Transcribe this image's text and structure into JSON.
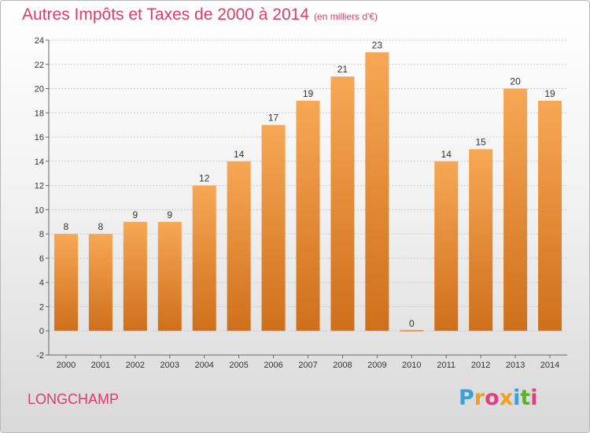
{
  "title": "Autres Impôts et Taxes de 2000 à 2014",
  "title_unit": "(en milliers d'€)",
  "location": "LONGCHAMP",
  "logo": {
    "letters": [
      "P",
      "r",
      "o",
      "x",
      "i",
      "t",
      "i"
    ],
    "colors": [
      "#3aa0d8",
      "#f0a020",
      "#e04080",
      "#f0a020",
      "#3aa0d8",
      "#60b030",
      "#e04080"
    ]
  },
  "colors": {
    "bar_light": "#f7a854",
    "bar_dark": "#cf6f1c",
    "title": "#dc3c6a"
  },
  "chart_data": {
    "type": "bar",
    "categories": [
      "2000",
      "2001",
      "2002",
      "2003",
      "2004",
      "2005",
      "2006",
      "2007",
      "2008",
      "2009",
      "2010",
      "2011",
      "2012",
      "2013",
      "2014"
    ],
    "values": [
      8,
      8,
      9,
      9,
      12,
      14,
      17,
      19,
      21,
      23,
      0,
      14,
      15,
      20,
      19
    ],
    "data_labels": [
      "8",
      "8",
      "9",
      "9",
      "12",
      "14",
      "17",
      "19",
      "21",
      "23",
      "0",
      "14",
      "15",
      "20",
      "19"
    ],
    "ylim": [
      -2,
      24
    ],
    "yticks": [
      -2,
      0,
      2,
      4,
      6,
      8,
      10,
      12,
      14,
      16,
      18,
      20,
      22,
      24
    ],
    "grid": true,
    "legend": "none"
  }
}
